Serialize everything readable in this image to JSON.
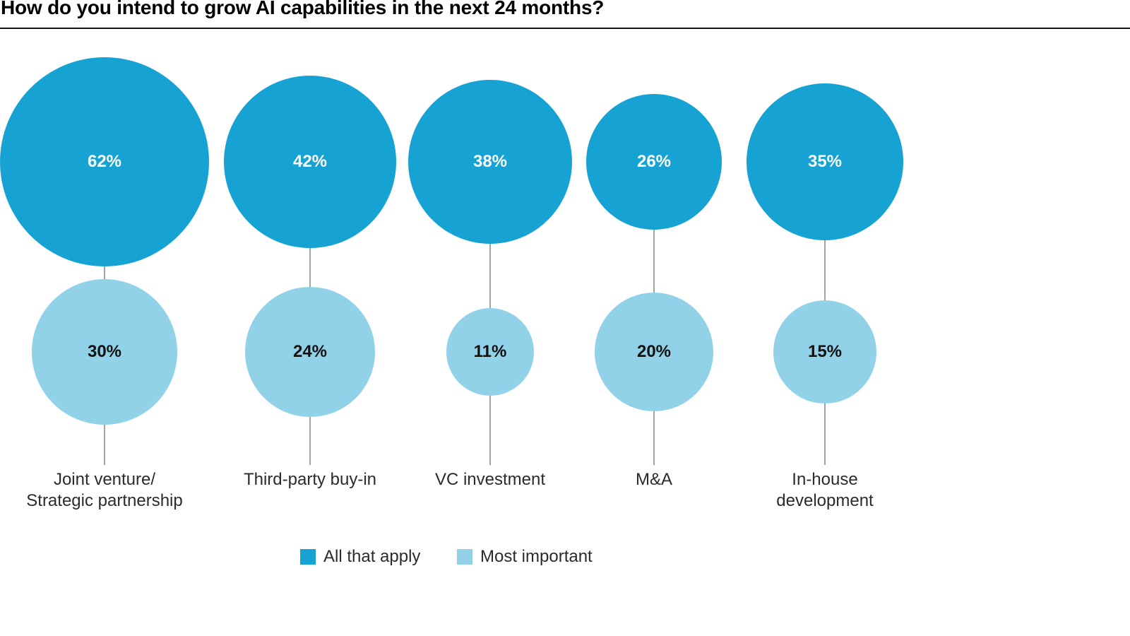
{
  "chart_data": {
    "type": "bubble",
    "title": "How do you intend to grow AI capabilities in the next 24 months?",
    "categories": [
      [
        "Joint venture/",
        "Strategic partnership"
      ],
      [
        "Third-party buy-in"
      ],
      [
        "VC investment"
      ],
      [
        "M&A"
      ],
      [
        "In-house",
        "development"
      ]
    ],
    "series": [
      {
        "name": "All that apply",
        "values": [
          62,
          42,
          38,
          26,
          35
        ],
        "color": "#16a3d4",
        "label_color": "#ffffff"
      },
      {
        "name": "Most important",
        "values": [
          30,
          24,
          11,
          20,
          15
        ],
        "color": "#92d2e9",
        "label_color": "#111111"
      }
    ],
    "value_suffix": "%",
    "sizing": "circle area proportional to value",
    "legend_position": "bottom",
    "grid": "off",
    "connector_color": "#a3a3a3"
  }
}
